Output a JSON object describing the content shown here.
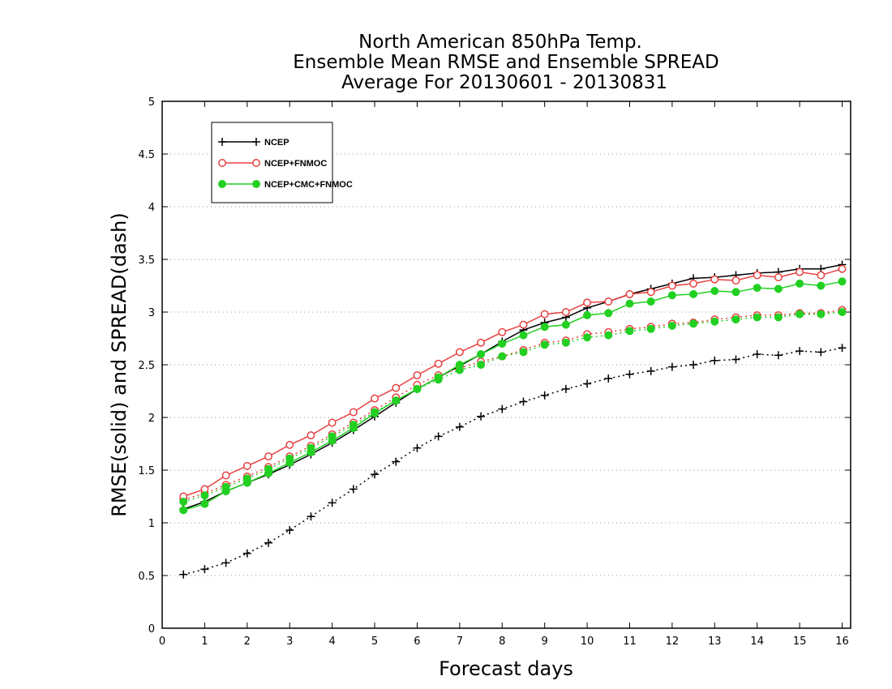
{
  "chart_data": {
    "type": "line",
    "title": [
      "North American 850hPa Temp.",
      "Ensemble Mean RMSE and Ensemble SPREAD",
      "Average For 20130601 - 20130831"
    ],
    "xlabel": "Forecast days",
    "ylabel": "RMSE(solid)  and  SPREAD(dash)",
    "xlim": [
      0,
      16.2
    ],
    "ylim": [
      0,
      5
    ],
    "xticks": [
      0,
      1,
      2,
      3,
      4,
      5,
      6,
      7,
      8,
      9,
      10,
      11,
      12,
      13,
      14,
      15,
      16
    ],
    "yticks": [
      0,
      0.5,
      1,
      1.5,
      2,
      2.5,
      3,
      3.5,
      4,
      4.5,
      5
    ],
    "grid": "horizontal dotted",
    "legend_position": "top-left",
    "x": [
      0.5,
      1,
      1.5,
      2,
      2.5,
      3,
      3.5,
      4,
      4.5,
      5,
      5.5,
      6,
      6.5,
      7,
      7.5,
      8,
      8.5,
      9,
      9.5,
      10,
      10.5,
      11,
      11.5,
      12,
      12.5,
      13,
      13.5,
      14,
      14.5,
      15,
      15.5,
      16
    ],
    "series": [
      {
        "name": "NCEP",
        "color": "#000000",
        "marker": "plus",
        "rmse": [
          1.13,
          1.2,
          1.3,
          1.38,
          1.46,
          1.55,
          1.65,
          1.76,
          1.88,
          2.01,
          2.14,
          2.27,
          2.38,
          2.49,
          2.6,
          2.72,
          2.83,
          2.9,
          2.95,
          3.04,
          3.1,
          3.17,
          3.22,
          3.27,
          3.32,
          3.33,
          3.35,
          3.37,
          3.38,
          3.41,
          3.41,
          3.45
        ],
        "spread": [
          0.51,
          0.56,
          0.62,
          0.71,
          0.81,
          0.93,
          1.06,
          1.19,
          1.32,
          1.46,
          1.58,
          1.71,
          1.82,
          1.91,
          2.01,
          2.08,
          2.15,
          2.21,
          2.27,
          2.32,
          2.37,
          2.41,
          2.44,
          2.48,
          2.5,
          2.54,
          2.55,
          2.6,
          2.59,
          2.63,
          2.62,
          2.66
        ]
      },
      {
        "name": "NCEP+FNMOC",
        "color": "#e84040",
        "marker": "open-circle",
        "rmse": [
          1.25,
          1.32,
          1.45,
          1.54,
          1.63,
          1.74,
          1.83,
          1.95,
          2.05,
          2.18,
          2.28,
          2.4,
          2.51,
          2.62,
          2.71,
          2.81,
          2.88,
          2.98,
          3.0,
          3.09,
          3.1,
          3.17,
          3.19,
          3.25,
          3.27,
          3.31,
          3.3,
          3.35,
          3.33,
          3.38,
          3.35,
          3.41
        ],
        "spread": [
          1.22,
          1.28,
          1.36,
          1.44,
          1.53,
          1.63,
          1.73,
          1.84,
          1.95,
          2.07,
          2.19,
          2.31,
          2.4,
          2.47,
          2.53,
          2.58,
          2.64,
          2.71,
          2.73,
          2.79,
          2.81,
          2.84,
          2.86,
          2.89,
          2.9,
          2.93,
          2.95,
          2.97,
          2.97,
          2.99,
          2.99,
          3.02
        ]
      },
      {
        "name": "NCEP+CMC+FNMOC",
        "color": "#22d022",
        "marker": "filled-circle",
        "rmse": [
          1.12,
          1.18,
          1.3,
          1.38,
          1.47,
          1.57,
          1.67,
          1.78,
          1.9,
          2.04,
          2.16,
          2.27,
          2.38,
          2.5,
          2.6,
          2.7,
          2.78,
          2.86,
          2.88,
          2.97,
          2.99,
          3.08,
          3.1,
          3.16,
          3.17,
          3.2,
          3.19,
          3.23,
          3.22,
          3.27,
          3.25,
          3.29
        ],
        "spread": [
          1.2,
          1.26,
          1.34,
          1.42,
          1.51,
          1.61,
          1.71,
          1.82,
          1.93,
          2.05,
          2.16,
          2.27,
          2.36,
          2.45,
          2.5,
          2.58,
          2.62,
          2.69,
          2.71,
          2.76,
          2.78,
          2.82,
          2.84,
          2.87,
          2.89,
          2.91,
          2.93,
          2.95,
          2.95,
          2.98,
          2.98,
          3.0
        ]
      }
    ]
  }
}
